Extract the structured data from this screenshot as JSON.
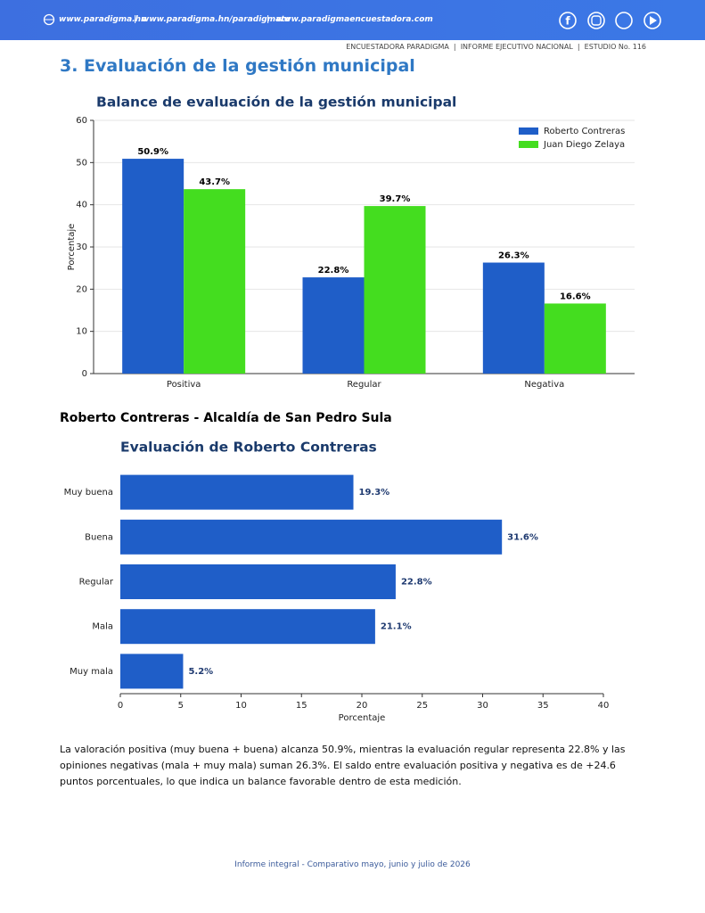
{
  "header": {
    "links": [
      "www.paradigma.hn",
      "www.paradigma.hn/paradigmatv",
      "www.paradigmaencuestadora.com"
    ],
    "report_line": "ENCUESTADORA PARADIGMA  |  INFORME EJECUTIVO NACIONAL  |  ESTUDIO No. 116"
  },
  "section_title": "3. Evaluación de la gestión municipal",
  "subsection_title": "Roberto Contreras - Alcaldía de San Pedro Sula",
  "chart_data": [
    {
      "type": "bar",
      "title": "Balance de evaluación de la gestión municipal",
      "ylabel": "Porcentaje",
      "categories": [
        "Positiva",
        "Regular",
        "Negativa"
      ],
      "series": [
        {
          "name": "Roberto Contreras",
          "color": "#1f5ec8",
          "values": [
            50.9,
            22.8,
            26.3
          ],
          "value_labels": [
            "50.9%",
            "22.8%",
            "26.3%"
          ]
        },
        {
          "name": "Juan Diego Zelaya",
          "color": "#44dd1f",
          "values": [
            43.7,
            39.7,
            16.6
          ],
          "value_labels": [
            "43.7%",
            "39.7%",
            "16.6%"
          ]
        }
      ],
      "ylim": [
        0,
        60
      ],
      "yticks": [
        0,
        10,
        20,
        30,
        40,
        50,
        60
      ],
      "grid": true,
      "legend": "upper right"
    },
    {
      "type": "barh",
      "title": "Evaluación de Roberto Contreras",
      "xlabel": "Porcentaje",
      "categories": [
        "Muy buena",
        "Buena",
        "Regular",
        "Mala",
        "Muy mala"
      ],
      "values": [
        19.3,
        31.6,
        22.8,
        21.1,
        5.2
      ],
      "value_labels": [
        "19.3%",
        "31.6%",
        "22.8%",
        "21.1%",
        "5.2%"
      ],
      "color": "#1f5ec8",
      "xlim": [
        0,
        40
      ],
      "xticks": [
        0,
        5,
        10,
        15,
        20,
        25,
        30,
        35,
        40
      ],
      "grid": false
    }
  ],
  "paragraph": "La valoración positiva (muy buena + buena) alcanza 50.9%, mientras la evaluación regular representa 22.8% y las opiniones negativas (mala + muy mala) suman 26.3%. El saldo entre evaluación positiva y negativa es de +24.6 puntos porcentuales, lo que indica un balance favorable dentro de esta medición.",
  "footer": "Informe integral - Comparativo mayo, junio y julio de 2026"
}
